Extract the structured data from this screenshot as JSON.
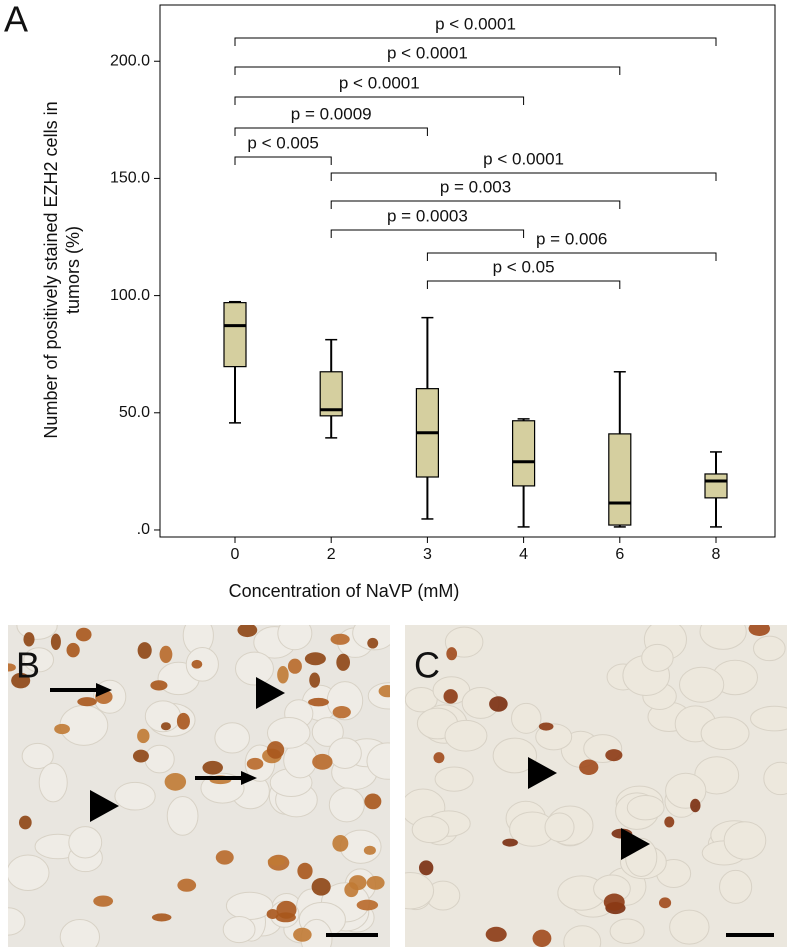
{
  "panels": [
    "A",
    "B",
    "C"
  ],
  "chart_data": {
    "type": "box",
    "xlabel": "Concentration of NaVP (mM)",
    "ylabel": [
      "Number of positively stained EZH2 cells in",
      "tumors (%)"
    ],
    "categories": [
      "0",
      "2",
      "3",
      "4",
      "6",
      "8"
    ],
    "color": "#d5cf9f",
    "boxes": [
      {
        "min": 45.7,
        "q1": 69.7,
        "median": 87.2,
        "q3": 97.0,
        "max": 97.4
      },
      {
        "min": 39.3,
        "q1": 48.7,
        "median": 51.3,
        "q3": 67.5,
        "max": 81.2
      },
      {
        "min": 4.7,
        "q1": 22.6,
        "median": 41.5,
        "q3": 60.3,
        "max": 90.6
      },
      {
        "min": 1.3,
        "q1": 18.8,
        "median": 29.1,
        "q3": 46.6,
        "max": 47.4
      },
      {
        "min": 1.3,
        "q1": 2.1,
        "median": 11.5,
        "q3": 41.0,
        "max": 67.5
      },
      {
        "min": 1.3,
        "q1": 13.7,
        "median": 20.9,
        "q3": 23.9,
        "max": 33.3
      }
    ],
    "ylim": [
      -3,
      224
    ],
    "yticks": [
      {
        "value": 0,
        "label": ".0"
      },
      {
        "value": 50,
        "label": "50.0"
      },
      {
        "value": 100,
        "label": "100.0"
      },
      {
        "value": 150,
        "label": "150.0"
      },
      {
        "value": 200,
        "label": "200.0"
      }
    ],
    "brackets": [
      {
        "text": "p < 0.0001",
        "from": "0",
        "to": "8"
      },
      {
        "text": "p < 0.0001",
        "from": "0",
        "to": "6"
      },
      {
        "text": "p < 0.0001",
        "from": "0",
        "to": "4"
      },
      {
        "text": "p = 0.0009",
        "from": "0",
        "to": "3"
      },
      {
        "text": "p < 0.005",
        "from": "0",
        "to": "2"
      },
      {
        "text": "p < 0.0001",
        "from": "2",
        "to": "8"
      },
      {
        "text": "p = 0.003",
        "from": "2",
        "to": "6"
      },
      {
        "text": "p = 0.0003",
        "from": "2",
        "to": "4"
      },
      {
        "text": "p = 0.006",
        "from": "3",
        "to": "8"
      },
      {
        "text": "p < 0.05",
        "from": "3",
        "to": "6"
      }
    ]
  }
}
